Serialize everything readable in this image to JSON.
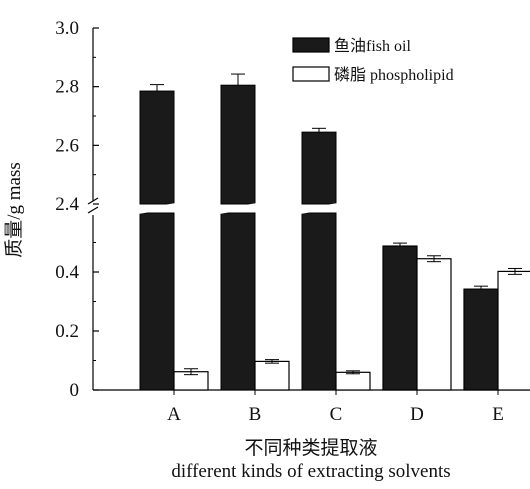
{
  "chart_data": {
    "type": "bar",
    "ylabel": "质量/g  mass",
    "xlabel_cn": "不同种类提取液",
    "xlabel_en": "different kinds of extracting solvents",
    "categories": [
      "A",
      "B",
      "C",
      "D",
      "E"
    ],
    "y_axis": {
      "broken": true,
      "lower_range": [
        0,
        0.56
      ],
      "upper_range": [
        2.4,
        3.0
      ],
      "ticks": [
        {
          "value": 0,
          "label": "0"
        },
        {
          "value": 0.2,
          "label": "0.2"
        },
        {
          "value": 0.4,
          "label": "0.4"
        },
        {
          "value": 2.4,
          "label": "2.4"
        },
        {
          "value": 2.6,
          "label": "2.6"
        },
        {
          "value": 2.8,
          "label": "2.8"
        },
        {
          "value": 3.0,
          "label": "3.0"
        }
      ]
    },
    "series": [
      {
        "name": "鱼油fish oil",
        "color": "#1a1a1a",
        "values": [
          2.785,
          2.805,
          2.645,
          0.488,
          0.342
        ],
        "errors": [
          0.022,
          0.038,
          0.013,
          0.01,
          0.01
        ]
      },
      {
        "name": "磷脂 phospholipid",
        "color": "#ffffff",
        "values": [
          0.062,
          0.097,
          0.06,
          0.445,
          0.402
        ],
        "errors": [
          0.01,
          0.006,
          0.005,
          0.01,
          0.01
        ]
      }
    ],
    "legend_position": "top-right"
  }
}
